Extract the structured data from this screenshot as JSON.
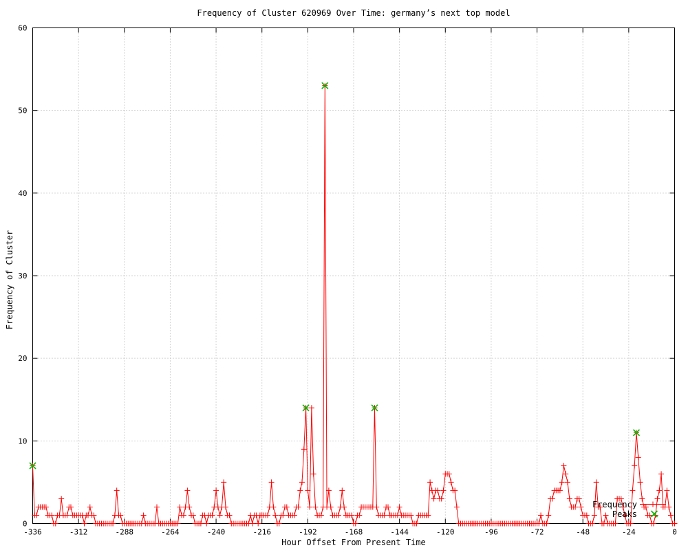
{
  "title": "Frequency of Cluster 620969 Over Time: germany’s next top model",
  "x_axis": {
    "label": "Hour Offset From Present Time",
    "ticks": [
      -336,
      -312,
      -288,
      -264,
      -240,
      -216,
      -192,
      -168,
      -144,
      -120,
      -96,
      -72,
      -48,
      -24,
      0
    ]
  },
  "y_axis": {
    "label": "Frequency of Cluster",
    "ticks": [
      0,
      10,
      20,
      30,
      40,
      50,
      60
    ]
  },
  "legend": {
    "series_label": "Frequency",
    "peaks_label": "Peaks",
    "position": "bottom-right"
  },
  "colors": {
    "series": "#ff0000",
    "peaks": "#00bb00",
    "grid": "#a8a8a8",
    "border": "#000000",
    "background": "#ffffff",
    "text": "#000000"
  },
  "chart_data": {
    "type": "line",
    "title": "Frequency of Cluster 620969 Over Time: germany’s next top model",
    "xlabel": "Hour Offset From Present Time",
    "ylabel": "Frequency of Cluster",
    "xlim": [
      -336,
      0
    ],
    "ylim": [
      0,
      60
    ],
    "grid": true,
    "legend_position": "bottom-right",
    "x_start": -336,
    "x_step": 1,
    "x_end": 0,
    "series": [
      {
        "name": "Frequency",
        "style": "linespoints",
        "marker": "plus",
        "color": "#ff0000",
        "values": [
          7,
          1,
          1,
          2,
          2,
          2,
          2,
          2,
          1,
          1,
          1,
          0,
          0,
          1,
          1,
          3,
          1,
          1,
          1,
          2,
          2,
          1,
          1,
          1,
          1,
          1,
          1,
          0,
          1,
          1,
          2,
          1,
          1,
          0,
          0,
          0,
          0,
          0,
          0,
          0,
          0,
          0,
          0,
          1,
          4,
          1,
          1,
          0,
          0,
          0,
          0,
          0,
          0,
          0,
          0,
          0,
          0,
          0,
          1,
          0,
          0,
          0,
          0,
          0,
          0,
          2,
          0,
          0,
          0,
          0,
          0,
          0,
          0,
          0,
          0,
          0,
          0,
          2,
          1,
          1,
          2,
          4,
          2,
          1,
          1,
          0,
          0,
          0,
          0,
          1,
          1,
          0,
          1,
          1,
          1,
          2,
          4,
          2,
          1,
          2,
          5,
          2,
          1,
          1,
          0,
          0,
          0,
          0,
          0,
          0,
          0,
          0,
          0,
          0,
          1,
          0,
          1,
          1,
          0,
          1,
          1,
          1,
          1,
          1,
          2,
          5,
          2,
          1,
          0,
          0,
          1,
          1,
          2,
          2,
          1,
          1,
          1,
          1,
          2,
          2,
          4,
          5,
          9,
          14,
          4,
          2,
          14,
          6,
          2,
          1,
          1,
          1,
          2,
          53,
          2,
          4,
          2,
          1,
          1,
          1,
          1,
          2,
          4,
          2,
          1,
          1,
          1,
          1,
          0,
          0,
          1,
          1,
          2,
          2,
          2,
          2,
          2,
          2,
          2,
          14,
          2,
          1,
          1,
          1,
          1,
          2,
          2,
          1,
          1,
          1,
          1,
          1,
          2,
          1,
          1,
          1,
          1,
          1,
          1,
          0,
          0,
          0,
          1,
          1,
          1,
          1,
          1,
          1,
          5,
          4,
          3,
          4,
          4,
          3,
          3,
          4,
          6,
          6,
          6,
          5,
          4,
          4,
          2,
          0,
          0,
          0,
          0,
          0,
          0,
          0,
          0,
          0,
          0,
          0,
          0,
          0,
          0,
          0,
          0,
          0,
          0,
          0,
          0,
          0,
          0,
          0,
          0,
          0,
          0,
          0,
          0,
          0,
          0,
          0,
          0,
          0,
          0,
          0,
          0,
          0,
          0,
          0,
          0,
          0,
          0,
          0,
          1,
          0,
          0,
          0,
          1,
          3,
          3,
          4,
          4,
          4,
          4,
          5,
          7,
          6,
          5,
          3,
          2,
          2,
          2,
          3,
          3,
          2,
          1,
          1,
          1,
          0,
          0,
          0,
          1,
          5,
          2,
          2,
          0,
          0,
          1,
          0,
          0,
          0,
          0,
          0,
          3,
          3,
          3,
          2,
          1,
          0,
          0,
          0,
          4,
          7,
          11,
          8,
          5,
          3,
          2,
          2,
          1,
          1,
          0,
          0,
          1,
          3,
          4,
          6,
          2,
          2,
          4,
          2,
          1,
          0,
          0
        ]
      },
      {
        "name": "Peaks",
        "style": "points",
        "marker": "cross",
        "color": "#00bb00",
        "points": [
          [
            -336,
            7
          ],
          [
            -193,
            14
          ],
          [
            -183,
            53
          ],
          [
            -157,
            14
          ],
          [
            -20,
            11
          ]
        ]
      }
    ]
  }
}
